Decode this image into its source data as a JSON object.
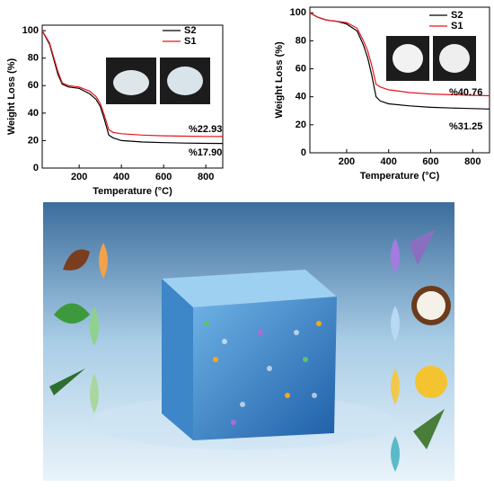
{
  "chart_data": [
    {
      "type": "line",
      "xlabel": "Temperature (°C)",
      "ylabel": "Weight Loss (%)",
      "x": [
        25,
        60,
        100,
        120,
        150,
        200,
        250,
        280,
        300,
        320,
        340,
        360,
        400,
        500,
        600,
        700,
        800,
        880
      ],
      "series": [
        {
          "name": "S2",
          "color": "#000000",
          "values": [
            100,
            90,
            68,
            61,
            59,
            58,
            54,
            50,
            45,
            35,
            24,
            22,
            20,
            19,
            18.5,
            18.2,
            18.0,
            17.9
          ]
        },
        {
          "name": "S1",
          "color": "#e8141c",
          "values": [
            100,
            91,
            70,
            62,
            60,
            59,
            56,
            52,
            47,
            38,
            28,
            26,
            25,
            24,
            23.5,
            23.2,
            23.0,
            22.93
          ]
        }
      ],
      "annotations": [
        "%22.93",
        "%17.90"
      ],
      "xlim": [
        25,
        880
      ],
      "xticks": [
        200,
        400,
        600,
        800
      ],
      "ylim": [
        0,
        104
      ],
      "yticks": [
        0,
        20,
        40,
        60,
        80,
        100
      ],
      "legend": "upper right"
    },
    {
      "type": "line",
      "xlabel": "Temperature (°C)",
      "ylabel": "Weight Loss (%)",
      "x": [
        25,
        60,
        100,
        120,
        150,
        200,
        250,
        280,
        300,
        320,
        340,
        360,
        400,
        500,
        600,
        700,
        800,
        880
      ],
      "series": [
        {
          "name": "S2",
          "color": "#000000",
          "values": [
            100,
            97,
            95,
            94.5,
            94,
            92,
            87,
            77,
            68,
            55,
            40,
            37,
            35,
            33.5,
            32.5,
            32,
            31.6,
            31.25
          ]
        },
        {
          "name": "S1",
          "color": "#e8141c",
          "values": [
            100,
            97,
            95,
            94.5,
            94,
            93,
            89,
            80,
            73,
            62,
            49,
            47,
            45,
            43,
            42,
            41.5,
            41,
            40.76
          ]
        }
      ],
      "annotations": [
        "%40.76",
        "%31.25"
      ],
      "xlim": [
        25,
        880
      ],
      "xticks": [
        200,
        400,
        600,
        800
      ],
      "ylim": [
        0,
        104
      ],
      "yticks": [
        0,
        20,
        40,
        60,
        80,
        100
      ],
      "legend": "upper right"
    }
  ]
}
